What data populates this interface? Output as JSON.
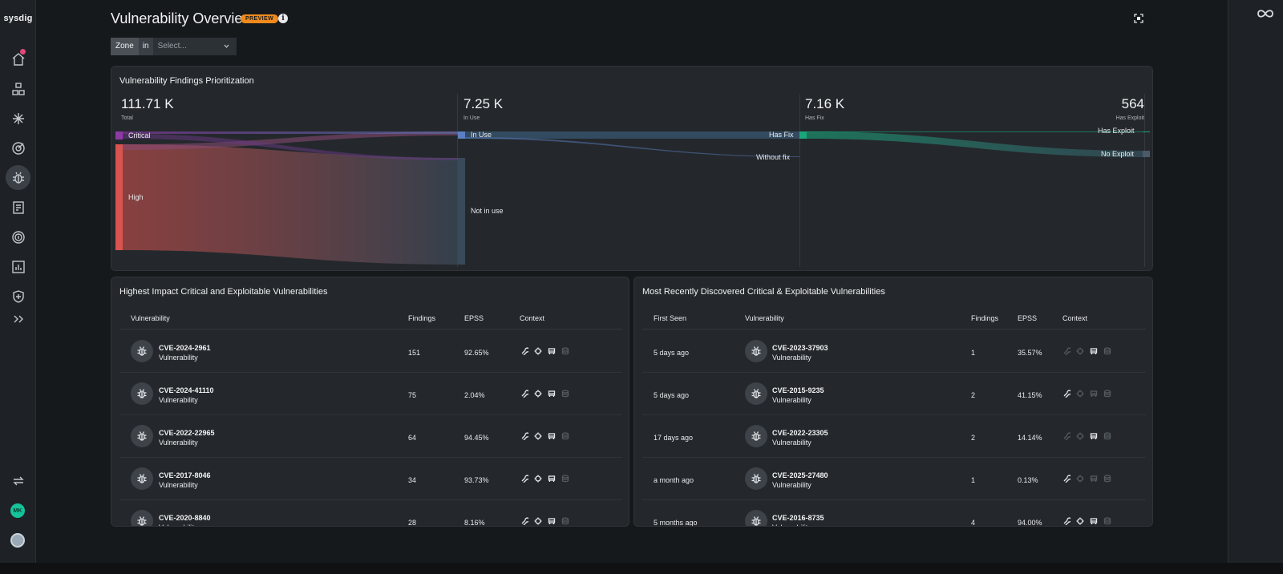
{
  "app": {
    "logo": "sysdig",
    "avatar_initials": "MK"
  },
  "header": {
    "title": "Vulnerability Overview",
    "badge": "PREVIEW"
  },
  "filter": {
    "zone_label": "Zone",
    "operator": "in",
    "placeholder": "Select..."
  },
  "prioritization": {
    "title": "Vulnerability Findings Prioritization",
    "stats": [
      {
        "value": "111.71 K",
        "label": "Total"
      },
      {
        "value": "7.25 K",
        "label": "In Use"
      },
      {
        "value": "7.16 K",
        "label": "Has Fix"
      },
      {
        "value": "564",
        "label": "Has Exploit"
      }
    ],
    "nodes": {
      "critical": "Critical",
      "high": "High",
      "in_use": "In Use",
      "not_in_use": "Not in use",
      "has_fix": "Has Fix",
      "without_fix": "Without fix",
      "has_exploit": "Has Exploit",
      "no_exploit": "No Exploit"
    },
    "colors": {
      "critical": "#8e3aa6",
      "high": "#d9534f",
      "in_use": "#5b7fc4",
      "not_in_use": "#3a4a5a",
      "has_fix": "#1aa57a",
      "no_exploit": "#4a5a6a"
    }
  },
  "impact_table": {
    "title": "Highest Impact Critical and Exploitable Vulnerabilities",
    "columns": [
      "Vulnerability",
      "Findings",
      "EPSS",
      "Context"
    ],
    "rows": [
      {
        "cve": "CVE-2024-2961",
        "type": "Vulnerability",
        "findings": "151",
        "epss": "92.65%"
      },
      {
        "cve": "CVE-2024-41110",
        "type": "Vulnerability",
        "findings": "75",
        "epss": "2.04%"
      },
      {
        "cve": "CVE-2022-22965",
        "type": "Vulnerability",
        "findings": "64",
        "epss": "94.45%"
      },
      {
        "cve": "CVE-2017-8046",
        "type": "Vulnerability",
        "findings": "34",
        "epss": "93.73%"
      },
      {
        "cve": "CVE-2020-8840",
        "type": "Vulnerability",
        "findings": "28",
        "epss": "8.16%"
      }
    ]
  },
  "recent_table": {
    "title": "Most Recently Discovered Critical & Exploitable Vulnerabilities",
    "columns": [
      "First Seen",
      "Vulnerability",
      "Findings",
      "EPSS",
      "Context"
    ],
    "rows": [
      {
        "first_seen": "5 days ago",
        "cve": "CVE-2023-37903",
        "type": "Vulnerability",
        "findings": "1",
        "epss": "35.57%"
      },
      {
        "first_seen": "5 days ago",
        "cve": "CVE-2015-9235",
        "type": "Vulnerability",
        "findings": "2",
        "epss": "41.15%"
      },
      {
        "first_seen": "17 days ago",
        "cve": "CVE-2022-23305",
        "type": "Vulnerability",
        "findings": "2",
        "epss": "14.14%"
      },
      {
        "first_seen": "a month ago",
        "cve": "CVE-2025-27480",
        "type": "Vulnerability",
        "findings": "1",
        "epss": "0.13%"
      },
      {
        "first_seen": "5 months ago",
        "cve": "CVE-2016-8735",
        "type": "Vulnerability",
        "findings": "4",
        "epss": "94.00%"
      }
    ]
  }
}
